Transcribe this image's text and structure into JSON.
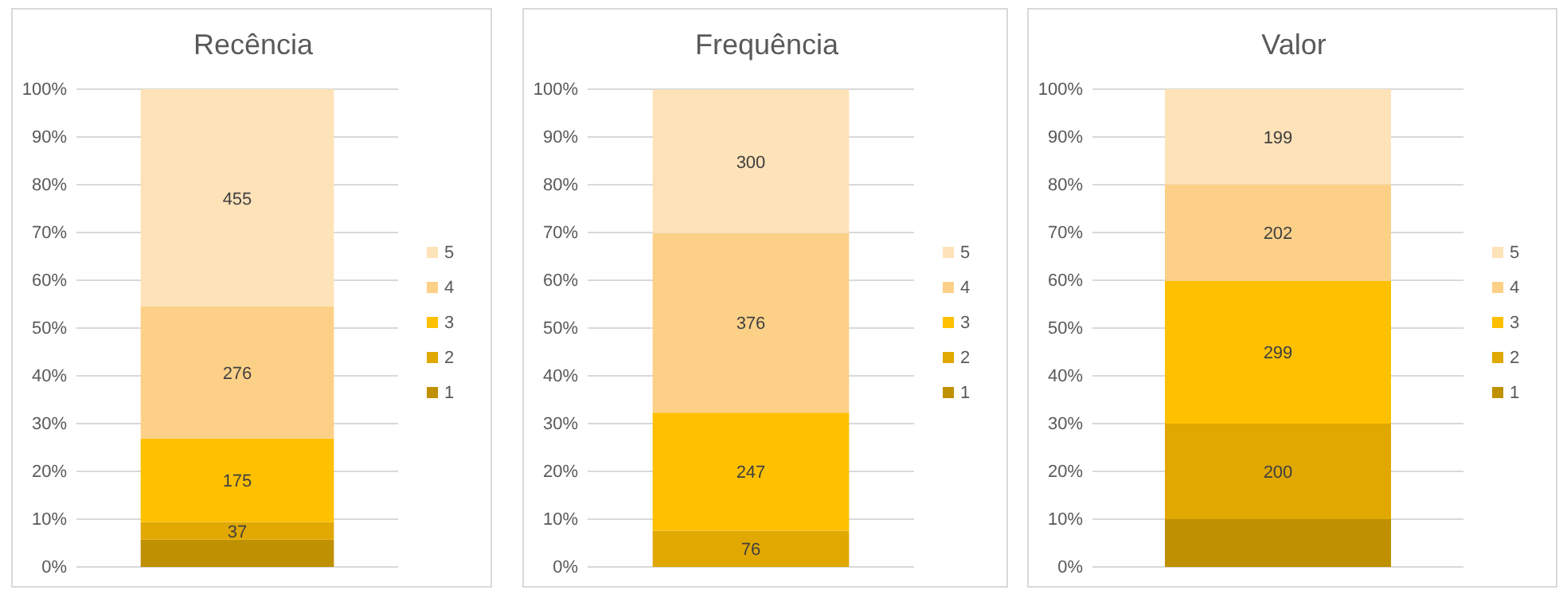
{
  "chart_data": [
    {
      "type": "bar",
      "title": "Recência",
      "stacked": true,
      "categories": [
        null
      ],
      "ylim": [
        0,
        100
      ],
      "yticks": [
        {
          "value": 0,
          "label": "0%"
        },
        {
          "value": 10,
          "label": "10%"
        },
        {
          "value": 20,
          "label": "20%"
        },
        {
          "value": 30,
          "label": "30%"
        },
        {
          "value": 40,
          "label": "40%"
        },
        {
          "value": 50,
          "label": "50%"
        },
        {
          "value": 60,
          "label": "60%"
        },
        {
          "value": 70,
          "label": "70%"
        },
        {
          "value": 80,
          "label": "80%"
        },
        {
          "value": 90,
          "label": "90%"
        },
        {
          "value": 100,
          "label": "100%"
        }
      ],
      "grid": "y",
      "legend": "right",
      "tick_labels": "y",
      "series": [
        {
          "name": "1",
          "color": "#bf9000",
          "values": [
            5.7
          ]
        },
        {
          "name": "2",
          "color": "#e0a800",
          "values": [
            3.7
          ]
        },
        {
          "name": "3",
          "color": "#ffc000",
          "values": [
            17.5
          ]
        },
        {
          "name": "4",
          "color": "#fdd088",
          "values": [
            27.6
          ]
        },
        {
          "name": "5",
          "color": "#fee2b8",
          "values": [
            45.5
          ]
        }
      ],
      "annotations": [
        "37",
        "175",
        "276",
        "455"
      ]
    },
    {
      "type": "bar",
      "title": "Frequência",
      "stacked": true,
      "categories": [
        null
      ],
      "ylim": [
        0,
        100
      ],
      "yticks": [
        {
          "value": 0,
          "label": "0%"
        },
        {
          "value": 10,
          "label": "10%"
        },
        {
          "value": 20,
          "label": "20%"
        },
        {
          "value": 30,
          "label": "30%"
        },
        {
          "value": 40,
          "label": "40%"
        },
        {
          "value": 50,
          "label": "50%"
        },
        {
          "value": 60,
          "label": "60%"
        },
        {
          "value": 70,
          "label": "70%"
        },
        {
          "value": 80,
          "label": "80%"
        },
        {
          "value": 90,
          "label": "90%"
        },
        {
          "value": 100,
          "label": "100%"
        }
      ],
      "grid": "y",
      "legend": "right",
      "tick_labels": "y",
      "series": [
        {
          "name": "1",
          "color": "#bf9000",
          "values": [
            null
          ]
        },
        {
          "name": "2",
          "color": "#e0a800",
          "values": [
            7.6
          ]
        },
        {
          "name": "3",
          "color": "#ffc000",
          "values": [
            24.7
          ]
        },
        {
          "name": "4",
          "color": "#fdd088",
          "values": [
            37.6
          ]
        },
        {
          "name": "5",
          "color": "#fee2b8",
          "values": [
            30.0
          ]
        }
      ],
      "annotations": [
        "76",
        "247",
        "376",
        "300"
      ]
    },
    {
      "type": "bar",
      "title": "Valor",
      "stacked": true,
      "categories": [
        null
      ],
      "ylim": [
        0,
        100
      ],
      "yticks": [
        {
          "value": 0,
          "label": "0%"
        },
        {
          "value": 10,
          "label": "10%"
        },
        {
          "value": 20,
          "label": "20%"
        },
        {
          "value": 30,
          "label": "30%"
        },
        {
          "value": 40,
          "label": "40%"
        },
        {
          "value": 50,
          "label": "50%"
        },
        {
          "value": 60,
          "label": "60%"
        },
        {
          "value": 70,
          "label": "70%"
        },
        {
          "value": 80,
          "label": "80%"
        },
        {
          "value": 90,
          "label": "90%"
        },
        {
          "value": 100,
          "label": "100%"
        }
      ],
      "grid": "y",
      "legend": "right",
      "tick_labels": "y",
      "series": [
        {
          "name": "1",
          "color": "#bf9000",
          "values": [
            10.0
          ]
        },
        {
          "name": "2",
          "color": "#e0a800",
          "values": [
            20.0
          ]
        },
        {
          "name": "3",
          "color": "#ffc000",
          "values": [
            29.9
          ]
        },
        {
          "name": "4",
          "color": "#fdd088",
          "values": [
            20.2
          ]
        },
        {
          "name": "5",
          "color": "#fee2b8",
          "values": [
            19.9
          ]
        }
      ],
      "annotations": [
        "200",
        "299",
        "202",
        "199"
      ]
    }
  ]
}
